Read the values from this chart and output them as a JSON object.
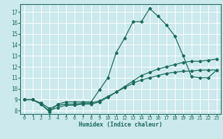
{
  "title": "",
  "xlabel": "Humidex (Indice chaleur)",
  "ylabel": "",
  "bg_color": "#cce9ed",
  "grid_color": "#ffffff",
  "line_color": "#1a6b5a",
  "xlim": [
    -0.5,
    23.5
  ],
  "ylim": [
    7.7,
    17.7
  ],
  "yticks": [
    8,
    9,
    10,
    11,
    12,
    13,
    14,
    15,
    16,
    17
  ],
  "xticks": [
    0,
    1,
    2,
    3,
    4,
    5,
    6,
    7,
    8,
    9,
    10,
    11,
    12,
    13,
    14,
    15,
    16,
    17,
    18,
    19,
    20,
    21,
    22,
    23
  ],
  "series": [
    {
      "x": [
        0,
        1,
        2,
        3,
        4,
        5,
        6,
        7,
        8,
        9,
        10,
        11,
        12,
        13,
        14,
        15,
        16,
        17,
        18,
        19,
        20,
        21,
        22,
        23
      ],
      "y": [
        9.0,
        9.0,
        8.6,
        7.9,
        8.6,
        8.8,
        8.8,
        8.8,
        8.8,
        9.9,
        11.0,
        13.3,
        14.6,
        16.1,
        16.1,
        17.3,
        16.6,
        15.8,
        14.8,
        13.0,
        11.1,
        11.0,
        11.0,
        11.7
      ]
    },
    {
      "x": [
        0,
        1,
        2,
        3,
        4,
        5,
        6,
        7,
        8,
        9,
        10,
        11,
        12,
        13,
        14,
        15,
        16,
        17,
        18,
        19,
        20,
        21,
        22,
        23
      ],
      "y": [
        9.0,
        9.0,
        8.6,
        8.0,
        8.3,
        8.5,
        8.5,
        8.6,
        8.6,
        8.8,
        9.2,
        9.7,
        10.2,
        10.7,
        11.2,
        11.5,
        11.8,
        12.0,
        12.2,
        12.4,
        12.5,
        12.5,
        12.6,
        12.7
      ]
    },
    {
      "x": [
        0,
        1,
        2,
        3,
        4,
        5,
        6,
        7,
        8,
        9,
        10,
        11,
        12,
        13,
        14,
        15,
        16,
        17,
        18,
        19,
        20,
        21,
        22,
        23
      ],
      "y": [
        9.0,
        9.0,
        8.7,
        8.2,
        8.5,
        8.6,
        8.6,
        8.7,
        8.7,
        8.9,
        9.3,
        9.7,
        10.1,
        10.5,
        10.8,
        11.0,
        11.2,
        11.4,
        11.5,
        11.6,
        11.6,
        11.7,
        11.7,
        11.7
      ]
    }
  ]
}
